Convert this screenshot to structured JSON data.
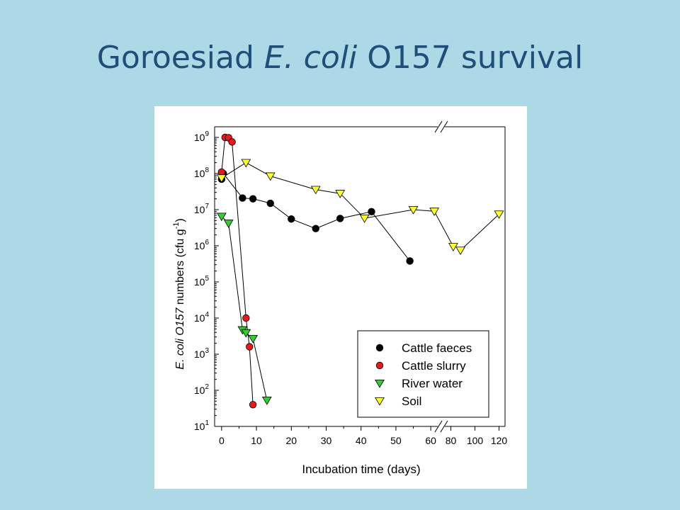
{
  "slide": {
    "title_pre": "Goroesiad ",
    "title_italic": "E. coli",
    "title_post": " O157 survival"
  },
  "chart_data": {
    "type": "scatter",
    "title": "",
    "xlabel": "Incubation time (days)",
    "ylabel_italic": "E. coli O157",
    "ylabel_rest": " numbers (cfu g",
    "ylabel_sup": "-1",
    "ylabel_close": ")",
    "yscale": "log",
    "ylim": [
      10,
      1000000000
    ],
    "y_ticks": [
      {
        "value": 10,
        "base": "10",
        "exp": "1"
      },
      {
        "value": 100,
        "base": "10",
        "exp": "2"
      },
      {
        "value": 1000,
        "base": "10",
        "exp": "3"
      },
      {
        "value": 10000,
        "base": "10",
        "exp": "4"
      },
      {
        "value": 100000,
        "base": "10",
        "exp": "5"
      },
      {
        "value": 1000000,
        "base": "10",
        "exp": "6"
      },
      {
        "value": 10000000,
        "base": "10",
        "exp": "7"
      },
      {
        "value": 100000000,
        "base": "10",
        "exp": "8"
      },
      {
        "value": 1000000000,
        "base": "10",
        "exp": "9"
      }
    ],
    "x_axis_break": true,
    "x_segments": [
      {
        "xlim": [
          -2,
          62
        ],
        "ticks": [
          0,
          10,
          20,
          30,
          40,
          50,
          60
        ]
      },
      {
        "xlim": [
          75,
          125
        ],
        "ticks": [
          80,
          100,
          120
        ]
      }
    ],
    "legend_position": "bottom-right",
    "series": [
      {
        "name": "Cattle faeces",
        "marker": "circle",
        "color": "#000000",
        "points": [
          [
            0,
            70000000
          ],
          [
            0.5,
            100000000
          ],
          [
            6,
            21000000
          ],
          [
            9,
            20000000
          ],
          [
            14,
            15000000
          ],
          [
            20,
            5500000
          ],
          [
            27,
            3000000
          ],
          [
            34,
            5700000
          ],
          [
            43,
            8800000
          ],
          [
            54,
            380000
          ]
        ],
        "segments": [
          [
            0,
            9
          ]
        ]
      },
      {
        "name": "Cattle slurry",
        "marker": "circle",
        "color": "#e41a1c",
        "points": [
          [
            0,
            110000000
          ],
          [
            1,
            1000000000
          ],
          [
            2,
            980000000
          ],
          [
            3,
            750000000
          ],
          [
            7,
            10000
          ],
          [
            8,
            1600
          ],
          [
            9,
            40
          ]
        ],
        "segments": [
          [
            0,
            6
          ]
        ]
      },
      {
        "name": "River water",
        "marker": "triangle-down",
        "color": "#33cc33",
        "points": [
          [
            0,
            6500000
          ],
          [
            2,
            4200000
          ],
          [
            6,
            4700
          ],
          [
            7,
            3900
          ],
          [
            9,
            2700
          ],
          [
            13,
            53
          ]
        ],
        "segments": [
          [
            0,
            5
          ]
        ]
      },
      {
        "name": "Soil",
        "marker": "triangle-down",
        "color": "#ffff33",
        "points": [
          [
            0,
            75000000
          ],
          [
            7,
            200000000
          ],
          [
            14,
            85000000
          ],
          [
            27,
            36000000
          ],
          [
            34,
            28000000
          ],
          [
            41,
            5800000
          ],
          [
            55,
            10000000
          ],
          [
            61,
            9000000
          ],
          [
            82,
            950000
          ],
          [
            88,
            750000
          ],
          [
            120,
            7500000
          ]
        ],
        "segments": [
          [
            0,
            7
          ],
          [
            7,
            8
          ],
          [
            9,
            10
          ]
        ]
      }
    ]
  }
}
